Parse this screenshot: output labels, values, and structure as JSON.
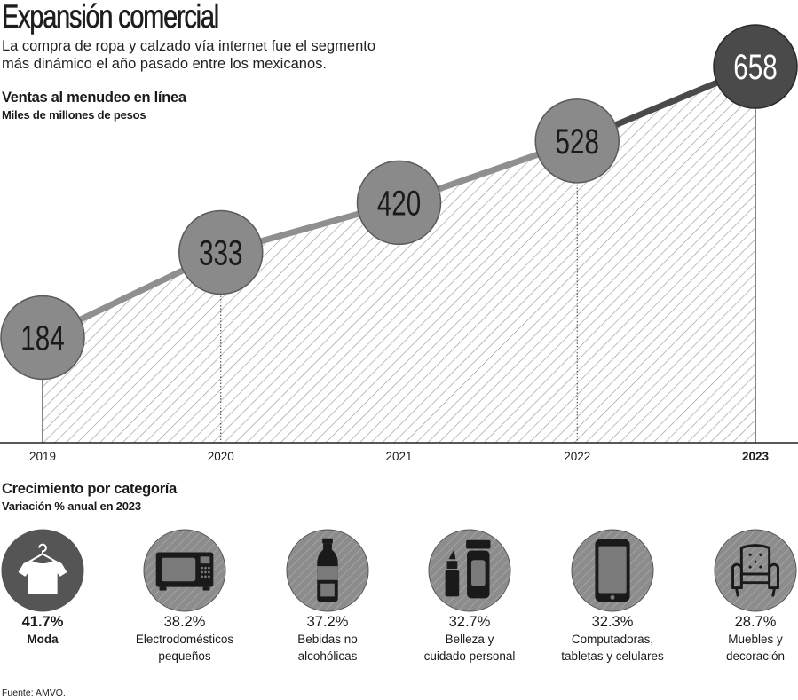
{
  "header": {
    "title": "Expansión comercial",
    "subtitle_line1": "La compra de ropa y calzado vía internet fue el segmento",
    "subtitle_line2": "más dinámico el año pasado entre los mexicanos."
  },
  "chart_data": {
    "type": "area",
    "title": "Ventas al menudeo en línea",
    "ylabel": "Miles de millones de pesos",
    "xlabel": "",
    "categories": [
      "2019",
      "2020",
      "2021",
      "2022",
      "2023"
    ],
    "values": [
      184,
      333,
      420,
      528,
      658
    ],
    "ylim": [
      0,
      700
    ],
    "highlight": "2023"
  },
  "categories_section": {
    "title": "Crecimiento por categoría",
    "subtitle": "Variación % anual en 2023",
    "items": [
      {
        "pct": "41.7%",
        "line1": "Moda",
        "line2": "",
        "icon": "tshirt-hanger-icon"
      },
      {
        "pct": "38.2%",
        "line1": "Electrodomésticos",
        "line2": "pequeños",
        "icon": "microwave-icon"
      },
      {
        "pct": "37.2%",
        "line1": "Bebidas no",
        "line2": "alcohólicas",
        "icon": "bottle-icon"
      },
      {
        "pct": "32.7%",
        "line1": "Belleza y",
        "line2": "cuidado personal",
        "icon": "lipstick-cream-icon"
      },
      {
        "pct": "32.3%",
        "line1": "Computadoras,",
        "line2": "tabletas y celulares",
        "icon": "smartphone-icon"
      },
      {
        "pct": "28.7%",
        "line1": "Muebles y",
        "line2": "decoración",
        "icon": "armchair-icon"
      }
    ]
  },
  "source": "Fuente: AMVO.",
  "colors": {
    "dark_circle": "#555555",
    "light_circle": "#8a8a8a",
    "latest_circle": "#4a4a4a",
    "line_light": "#8f8f8f",
    "line_dark": "#4a4a4a"
  }
}
